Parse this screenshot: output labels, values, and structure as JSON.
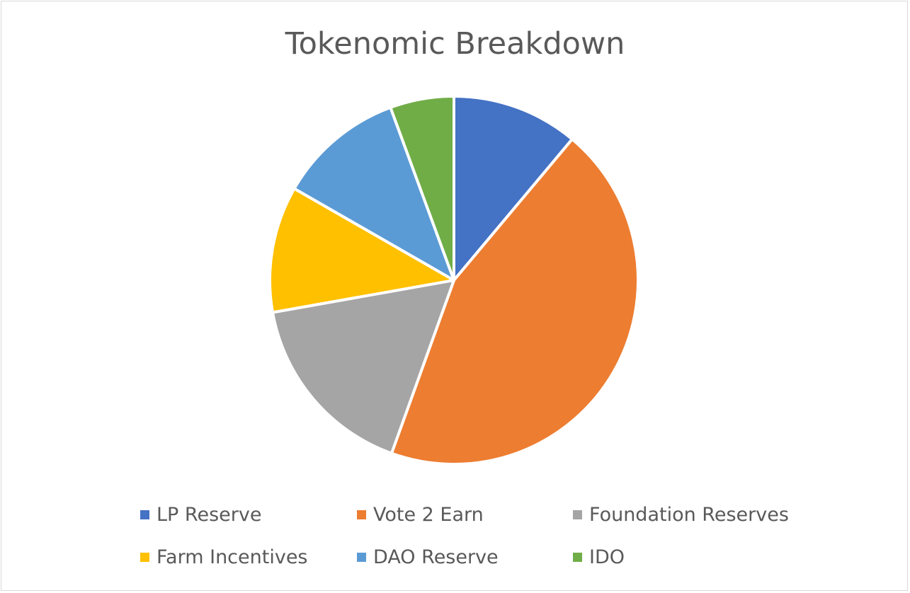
{
  "chart_data": {
    "type": "pie",
    "title": "Tokenomic Breakdown",
    "categories": [
      "LP Reserve",
      "Vote 2 Earn",
      "Foundation Reserves",
      "Farm Incentives",
      "DAO Reserve",
      "IDO"
    ],
    "values": [
      11.1,
      44.4,
      16.7,
      11.1,
      11.1,
      5.6
    ],
    "colors": [
      "#4472C4",
      "#ED7D31",
      "#A5A5A5",
      "#FFC000",
      "#5B9BD5",
      "#70AD47"
    ],
    "legend_position": "bottom",
    "grid": false
  }
}
